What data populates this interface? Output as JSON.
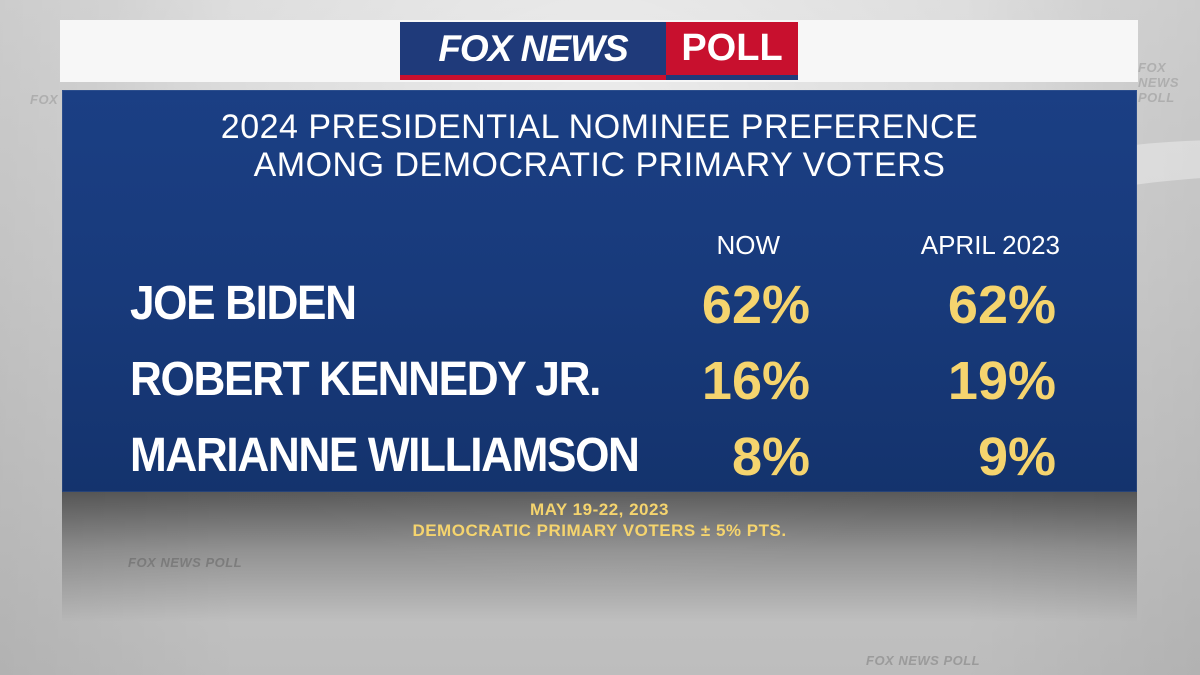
{
  "logo": {
    "brand": "FOX NEWS",
    "badge": "POLL"
  },
  "chart_data": {
    "type": "table",
    "title": "2024 PRESIDENTIAL NOMINEE PREFERENCE",
    "subtitle": "AMONG DEMOCRATIC PRIMARY VOTERS",
    "columns": [
      "NOW",
      "APRIL 2023"
    ],
    "rows": [
      {
        "name": "JOE BIDEN",
        "now": "62%",
        "april_2023": "62%"
      },
      {
        "name": "ROBERT KENNEDY JR.",
        "now": "16%",
        "april_2023": "19%"
      },
      {
        "name": "MARIANNE WILLIAMSON",
        "now": "8%",
        "april_2023": "9%"
      }
    ],
    "series": [
      {
        "name": "NOW",
        "values": [
          62,
          16,
          8
        ]
      },
      {
        "name": "APRIL 2023",
        "values": [
          62,
          19,
          9
        ]
      }
    ]
  },
  "footer": {
    "dates": "MAY 19-22, 2023",
    "sample": "DEMOCRATIC PRIMARY VOTERS ± 5% PTS."
  },
  "watermark": "FOX NEWS POLL",
  "colors": {
    "panel": "#183a7b",
    "value_text": "#f5d46e",
    "brand_blue": "#1f3a7a",
    "brand_red": "#c8102e"
  }
}
